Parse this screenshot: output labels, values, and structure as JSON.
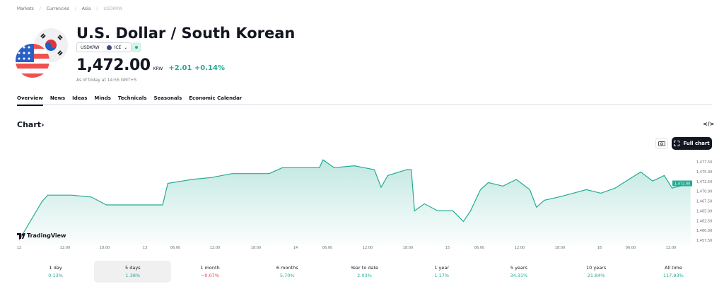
{
  "breadcrumbs": [
    "Markets",
    "Currencies",
    "Asia",
    "USDKRW"
  ],
  "header": {
    "title": "U.S. Dollar / South Korean",
    "symbol": "USDKRW",
    "exchange": "ICE",
    "price": "1,472.00",
    "currency": "KRW",
    "change": "+2.01",
    "change_pct": "+0.14%",
    "as_of": "As of today at 14:55 GMT+5"
  },
  "tabs": [
    "Overview",
    "News",
    "Ideas",
    "Minds",
    "Technicals",
    "Seasonals",
    "Economic Calendar"
  ],
  "chart_section": {
    "title": "Chart",
    "full_chart": "Full chart",
    "embed_icon": "</>",
    "brand": "TradingView"
  },
  "colors": {
    "accent": "#22ab94",
    "negative": "#f23645",
    "dark": "#131722"
  },
  "chart_data": {
    "type": "area",
    "y_ticks": [
      1477.5,
      1475,
      1472.5,
      1470,
      1467.5,
      1465,
      1462.5,
      1460,
      1457.5
    ],
    "y_tick_labels": [
      "1,477.50",
      "1,475.00",
      "1,472.50",
      "1,470.00",
      "1,467.50",
      "1,465.00",
      "1,462.50",
      "1,460.00",
      "1,457.50"
    ],
    "ylim": [
      1457.5,
      1477.5
    ],
    "last_label": "1,472.00",
    "x_ticks": [
      {
        "label": "12",
        "t": "12 00:00"
      },
      {
        "label": "12:00",
        "t": "12 12:00"
      },
      {
        "label": "18:00",
        "t": "12 18:00"
      },
      {
        "label": "13",
        "t": "13 00:00"
      },
      {
        "label": "06:00",
        "t": "13 06:00"
      },
      {
        "label": "12:00",
        "t": "13 12:00"
      },
      {
        "label": "18:00",
        "t": "13 18:00"
      },
      {
        "label": "14",
        "t": "14 00:00"
      },
      {
        "label": "06:00",
        "t": "14 06:00"
      },
      {
        "label": "12:00",
        "t": "14 12:00"
      },
      {
        "label": "18:00",
        "t": "14 18:00"
      },
      {
        "label": "15",
        "t": "15 00:00"
      },
      {
        "label": "06:00",
        "t": "15 06:00"
      },
      {
        "label": "12:00",
        "t": "15 12:00"
      },
      {
        "label": "18:00",
        "t": "15 18:00"
      },
      {
        "label": "16",
        "t": "16 00:00"
      },
      {
        "label": "06:00",
        "t": "16 06:00"
      },
      {
        "label": "12:00",
        "t": "16 12:00"
      }
    ],
    "points": [
      [
        "12 00:00",
        1457.5
      ],
      [
        "12 06:00",
        1467.4
      ],
      [
        "12 07:30",
        1469
      ],
      [
        "12 13:00",
        1469
      ],
      [
        "12 16:00",
        1468.5
      ],
      [
        "12 18:15",
        1466.5
      ],
      [
        "12 22:30",
        1466.5
      ],
      [
        "13 03:30",
        1466.5
      ],
      [
        "13 04:30",
        1472
      ],
      [
        "13 08:30",
        1473
      ],
      [
        "13 11:30",
        1473.5
      ],
      [
        "13 14:30",
        1474.5
      ],
      [
        "13 20:00",
        1474.5
      ],
      [
        "13 22:00",
        1476
      ],
      [
        "14 04:30",
        1476
      ],
      [
        "14 05:10",
        1478
      ],
      [
        "14 07:00",
        1476
      ],
      [
        "14 10:00",
        1476.5
      ],
      [
        "14 13:00",
        1475.5
      ],
      [
        "14 14:00",
        1471
      ],
      [
        "14 15:00",
        1474
      ],
      [
        "14 17:50",
        1475.5
      ],
      [
        "14 18:30",
        1475.5
      ],
      [
        "14 19:00",
        1465
      ],
      [
        "14 20:30",
        1466.8
      ],
      [
        "14 22:30",
        1465
      ],
      [
        "15 01:00",
        1465
      ],
      [
        "15 03:00",
        1462.3
      ],
      [
        "15 04:20",
        1465
      ],
      [
        "15 06:10",
        1470.4
      ],
      [
        "15 07:20",
        1472.2
      ],
      [
        "15 09:30",
        1471.3
      ],
      [
        "15 11:30",
        1473
      ],
      [
        "15 13:30",
        1470.4
      ],
      [
        "15 14:30",
        1465.9
      ],
      [
        "15 15:40",
        1467.7
      ],
      [
        "15 18:00",
        1468.6
      ],
      [
        "15 20:00",
        1469.5
      ],
      [
        "15 22:00",
        1470.4
      ],
      [
        "16 00:15",
        1469.5
      ],
      [
        "16 03:00",
        1470.8
      ],
      [
        "16 05:45",
        1473.1
      ],
      [
        "16 07:30",
        1474.9
      ],
      [
        "16 09:15",
        1472.6
      ],
      [
        "16 11:00",
        1474
      ],
      [
        "16 12:10",
        1470.8
      ],
      [
        "16 14:55",
        1472
      ]
    ]
  },
  "periods": [
    {
      "label": "1 day",
      "value": "0.13%",
      "dir": "up"
    },
    {
      "label": "5 days",
      "value": "1.38%",
      "dir": "up",
      "selected": true
    },
    {
      "label": "1 month",
      "value": "−0.07%",
      "dir": "down"
    },
    {
      "label": "6 months",
      "value": "5.70%",
      "dir": "up"
    },
    {
      "label": "Year to date",
      "value": "2.03%",
      "dir": "up"
    },
    {
      "label": "1 year",
      "value": "1.17%",
      "dir": "up"
    },
    {
      "label": "5 years",
      "value": "34.31%",
      "dir": "up"
    },
    {
      "label": "10 years",
      "value": "21.84%",
      "dir": "up"
    },
    {
      "label": "All time",
      "value": "117.93%",
      "dir": "up"
    }
  ]
}
